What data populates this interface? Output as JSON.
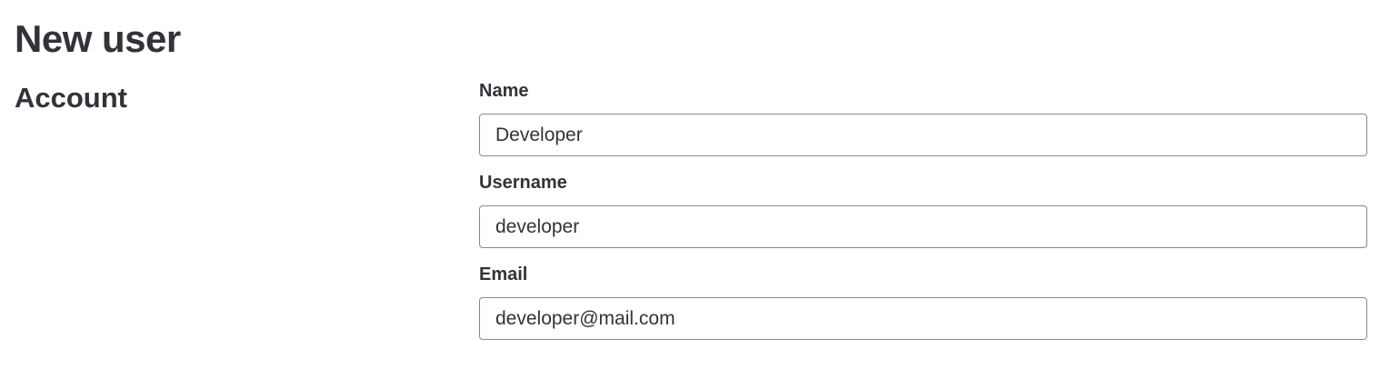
{
  "page": {
    "title": "New user"
  },
  "account": {
    "section_title": "Account",
    "fields": {
      "name": {
        "label": "Name",
        "value": "Developer"
      },
      "username": {
        "label": "Username",
        "value": "developer"
      },
      "email": {
        "label": "Email",
        "value": "developer@mail.com"
      }
    }
  }
}
